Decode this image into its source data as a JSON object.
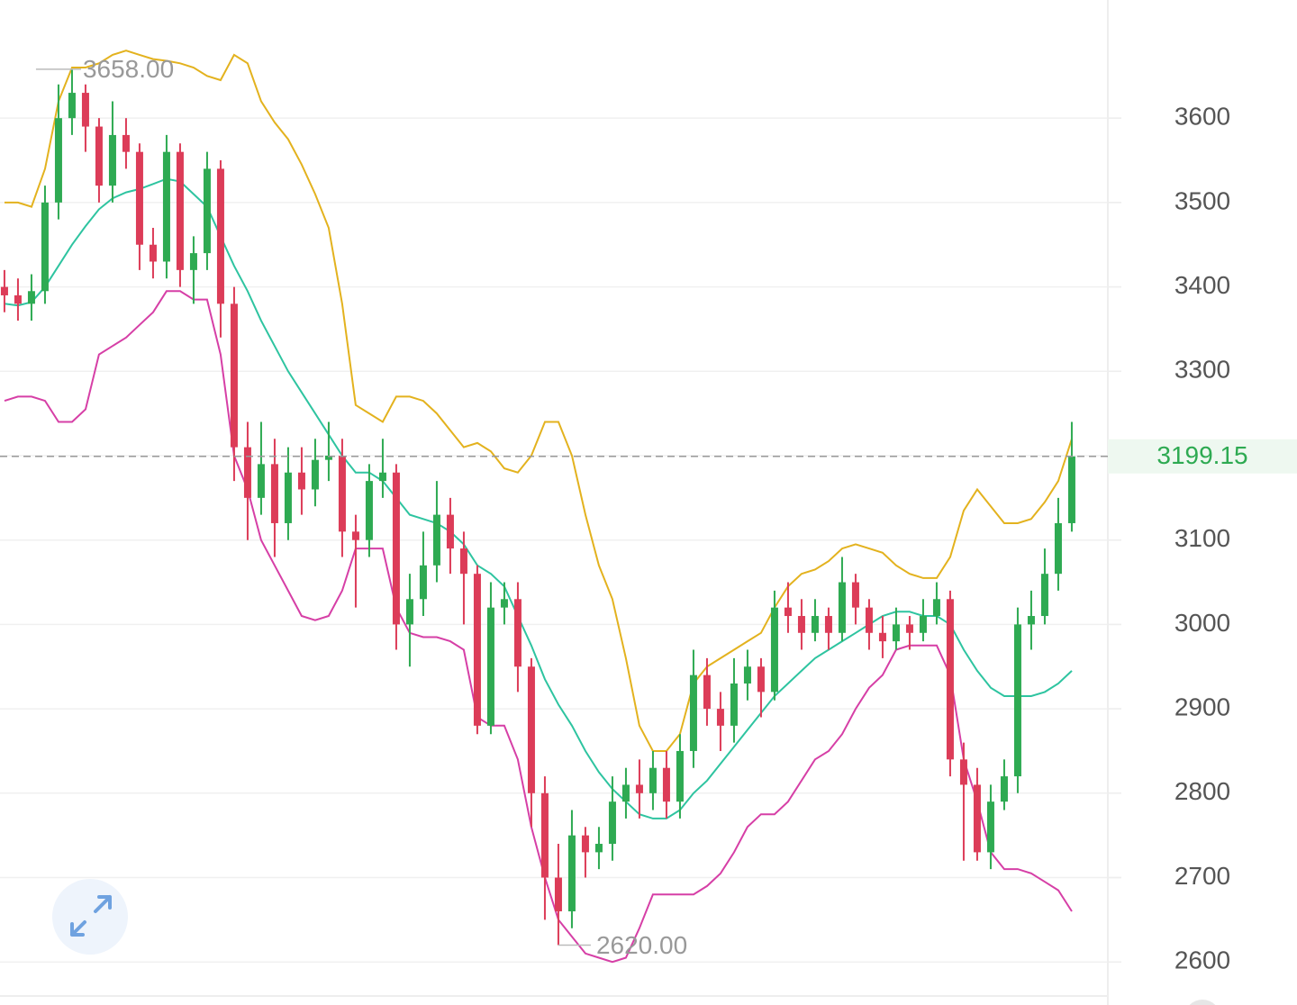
{
  "chart_data": {
    "type": "candlestick",
    "ylim": [
      2549,
      3740
    ],
    "yticks": [
      2600,
      2700,
      2800,
      2900,
      3000,
      3100,
      3200,
      3300,
      3400,
      3500,
      3600
    ],
    "xlim": [
      -0.33,
      81.67
    ],
    "grid": true,
    "up_color": "#2eaa52",
    "down_color": "#dc3c58",
    "open": [
      3400,
      3390,
      3380,
      3395,
      3500,
      3600,
      3630,
      3590,
      3520,
      3580,
      3560,
      3450,
      3430,
      3560,
      3420,
      3440,
      3540,
      3380,
      3210,
      3150,
      3190,
      3120,
      3180,
      3160,
      3195,
      3200,
      3110,
      3100,
      3170,
      3180,
      3000,
      3030,
      3070,
      3130,
      3090,
      3060,
      2880,
      3020,
      3030,
      2950,
      2800,
      2700,
      2660,
      2750,
      2730,
      2740,
      2790,
      2810,
      2800,
      2830,
      2790,
      2850,
      2940,
      2900,
      2880,
      2930,
      2950,
      2920,
      3020,
      3010,
      2990,
      3010,
      2990,
      3050,
      3020,
      2990,
      2980,
      3000,
      2990,
      3010,
      3030,
      2840,
      2810,
      2730,
      2790,
      2820,
      3000,
      3010,
      3060,
      3120
    ],
    "high": [
      3420,
      3410,
      3415,
      3520,
      3640,
      3658,
      3640,
      3600,
      3620,
      3600,
      3570,
      3470,
      3580,
      3570,
      3460,
      3560,
      3550,
      3400,
      3240,
      3240,
      3220,
      3210,
      3210,
      3220,
      3240,
      3220,
      3130,
      3190,
      3220,
      3190,
      3060,
      3110,
      3170,
      3150,
      3110,
      3070,
      3050,
      3050,
      3050,
      2960,
      2820,
      2740,
      2780,
      2760,
      2760,
      2820,
      2830,
      2840,
      2850,
      2850,
      2870,
      2970,
      2960,
      2920,
      2960,
      2970,
      2960,
      3040,
      3050,
      3030,
      3030,
      3020,
      3080,
      3060,
      3030,
      3010,
      3020,
      3010,
      3030,
      3050,
      3040,
      2860,
      2830,
      2810,
      2840,
      3020,
      3040,
      3090,
      3150,
      3240
    ],
    "low": [
      3370,
      3360,
      3360,
      3380,
      3480,
      3580,
      3560,
      3500,
      3500,
      3540,
      3420,
      3410,
      3410,
      3400,
      3380,
      3420,
      3340,
      3170,
      3100,
      3130,
      3080,
      3100,
      3130,
      3140,
      3170,
      3080,
      3020,
      3080,
      3150,
      2970,
      2950,
      3010,
      3050,
      3060,
      3000,
      2870,
      2870,
      3000,
      2920,
      2760,
      2650,
      2620,
      2640,
      2700,
      2710,
      2720,
      2770,
      2770,
      2780,
      2770,
      2770,
      2830,
      2880,
      2850,
      2860,
      2910,
      2890,
      2910,
      2990,
      2970,
      2980,
      2970,
      2980,
      3000,
      2970,
      2960,
      2970,
      2970,
      2980,
      3000,
      2820,
      2720,
      2720,
      2710,
      2780,
      2800,
      2970,
      3000,
      3040,
      3110
    ],
    "close": [
      3390,
      3380,
      3395,
      3500,
      3600,
      3630,
      3590,
      3520,
      3580,
      3560,
      3450,
      3430,
      3560,
      3420,
      3440,
      3540,
      3380,
      3210,
      3150,
      3190,
      3120,
      3180,
      3160,
      3195,
      3200,
      3110,
      3100,
      3170,
      3180,
      3000,
      3030,
      3070,
      3130,
      3090,
      3060,
      2880,
      3020,
      3030,
      2950,
      2800,
      2700,
      2660,
      2750,
      2730,
      2740,
      2790,
      2810,
      2800,
      2830,
      2790,
      2850,
      2940,
      2900,
      2880,
      2930,
      2950,
      2920,
      3020,
      3010,
      2990,
      3010,
      2990,
      3050,
      3020,
      2990,
      2980,
      3000,
      2990,
      3010,
      3030,
      2840,
      2810,
      2730,
      2790,
      2820,
      3000,
      3010,
      3060,
      3120,
      3199.15
    ],
    "bands": [
      {
        "color": "#e3b21e",
        "values": [
          3500,
          3500,
          3495,
          3540,
          3620,
          3660,
          3660,
          3665,
          3675,
          3680,
          3675,
          3670,
          3668,
          3665,
          3660,
          3650,
          3645,
          3675,
          3665,
          3620,
          3595,
          3575,
          3545,
          3510,
          3470,
          3380,
          3260,
          3250,
          3240,
          3270,
          3270,
          3265,
          3250,
          3230,
          3210,
          3215,
          3205,
          3185,
          3180,
          3200,
          3240,
          3240,
          3200,
          3130,
          3070,
          3030,
          2960,
          2880,
          2850,
          2850,
          2870,
          2930,
          2950,
          2960,
          2970,
          2980,
          2990,
          3020,
          3045,
          3060,
          3065,
          3075,
          3090,
          3095,
          3090,
          3085,
          3070,
          3060,
          3055,
          3055,
          3080,
          3135,
          3160,
          3140,
          3120,
          3120,
          3125,
          3145,
          3170,
          3220
        ]
      },
      {
        "color": "#2ec4a0",
        "values": [
          3380,
          3378,
          3382,
          3400,
          3425,
          3450,
          3472,
          3492,
          3505,
          3512,
          3516,
          3522,
          3528,
          3525,
          3510,
          3495,
          3460,
          3425,
          3395,
          3360,
          3330,
          3300,
          3275,
          3250,
          3225,
          3200,
          3180,
          3180,
          3170,
          3150,
          3130,
          3125,
          3120,
          3110,
          3095,
          3070,
          3060,
          3045,
          3010,
          2975,
          2935,
          2905,
          2880,
          2850,
          2825,
          2805,
          2790,
          2775,
          2770,
          2770,
          2780,
          2800,
          2815,
          2835,
          2855,
          2875,
          2895,
          2915,
          2930,
          2945,
          2960,
          2970,
          2980,
          2990,
          3000,
          3010,
          3015,
          3015,
          3010,
          3010,
          3000,
          2970,
          2945,
          2925,
          2915,
          2915,
          2915,
          2920,
          2930,
          2945
        ]
      },
      {
        "color": "#d63fa6",
        "values": [
          3265,
          3270,
          3270,
          3265,
          3240,
          3240,
          3255,
          3320,
          3330,
          3340,
          3355,
          3370,
          3395,
          3395,
          3385,
          3385,
          3320,
          3200,
          3160,
          3100,
          3070,
          3040,
          3010,
          3005,
          3010,
          3040,
          3090,
          3090,
          3090,
          3020,
          2990,
          2985,
          2985,
          2980,
          2970,
          2890,
          2880,
          2880,
          2840,
          2760,
          2700,
          2650,
          2630,
          2610,
          2605,
          2600,
          2605,
          2640,
          2680,
          2680,
          2680,
          2680,
          2690,
          2705,
          2730,
          2760,
          2775,
          2775,
          2790,
          2815,
          2840,
          2850,
          2870,
          2900,
          2925,
          2940,
          2970,
          2975,
          2975,
          2975,
          2940,
          2840,
          2790,
          2730,
          2710,
          2710,
          2705,
          2695,
          2685,
          2660
        ]
      }
    ],
    "high_annotation": {
      "value": 3658,
      "label": "3658.00"
    },
    "low_annotation": {
      "value": 2620,
      "label": "2620.00"
    },
    "last_price": {
      "value": 3199.15,
      "label": "3199.15"
    }
  }
}
